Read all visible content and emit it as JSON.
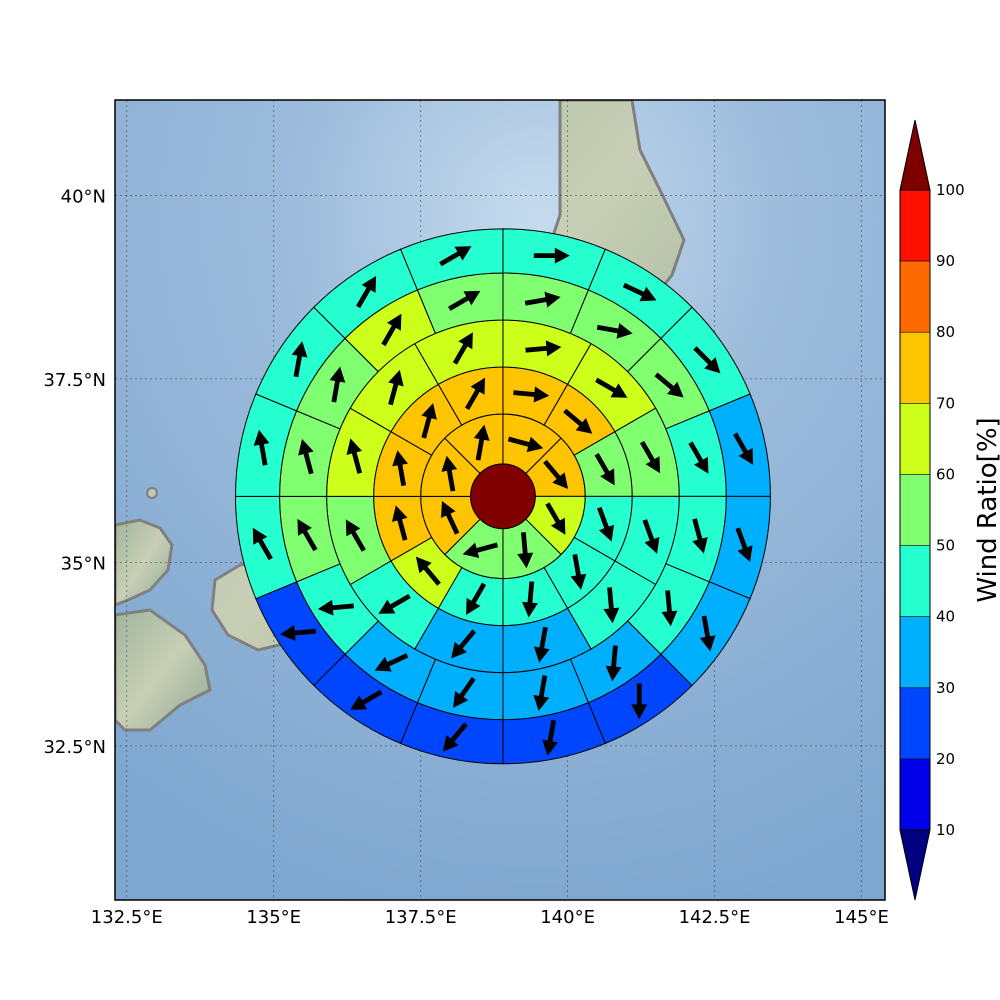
{
  "chart_data": {
    "type": "polar-sector-heatmap-with-wind-vectors",
    "map": {
      "lon_range": [
        132.3,
        145.4
      ],
      "lat_range": [
        30.4,
        41.3
      ],
      "x_tick_labels": [
        {
          "lon": 132.5,
          "label": "132.5°E"
        },
        {
          "lon": 135.0,
          "label": "135°E"
        },
        {
          "lon": 137.5,
          "label": "137.5°E"
        },
        {
          "lon": 140.0,
          "label": "140°E"
        },
        {
          "lon": 142.5,
          "label": "142.5°E"
        },
        {
          "lon": 145.0,
          "label": "145°E"
        }
      ],
      "y_tick_labels": [
        {
          "lat": 32.5,
          "label": "32.5°N"
        },
        {
          "lat": 35.0,
          "label": "35°N"
        },
        {
          "lat": 37.5,
          "label": "37.5°N"
        },
        {
          "lat": 40.0,
          "label": "40°N"
        }
      ],
      "grid": true,
      "background": "shaded-relief ocean and land (Japan, Korea)",
      "center": {
        "lon": 138.9,
        "lat": 35.9
      },
      "ring_radii_deg": [
        0.55,
        1.4,
        2.2,
        3.0,
        3.8,
        4.55
      ],
      "center_color": "#800000"
    },
    "colorbar": {
      "label": "Wind Ratio[%]",
      "ticks": [
        10,
        20,
        30,
        40,
        50,
        60,
        70,
        80,
        90,
        100
      ],
      "levels": [
        {
          "from": 10,
          "to": 20,
          "color": "#0000e8"
        },
        {
          "from": 20,
          "to": 30,
          "color": "#0046ff"
        },
        {
          "from": 30,
          "to": 40,
          "color": "#00b0ff"
        },
        {
          "from": 40,
          "to": 50,
          "color": "#26ffd0"
        },
        {
          "from": 50,
          "to": 60,
          "color": "#80ff70"
        },
        {
          "from": 60,
          "to": 70,
          "color": "#ccff1a"
        },
        {
          "from": 70,
          "to": 80,
          "color": "#ffc400"
        },
        {
          "from": 80,
          "to": 90,
          "color": "#ff6a00"
        },
        {
          "from": 90,
          "to": 100,
          "color": "#ff0f00"
        }
      ],
      "extend_min_color": "#000080",
      "extend_max_color": "#800000"
    },
    "rings": [
      {
        "ring": 1,
        "inner": 0.55,
        "outer": 1.4,
        "sector_deg": 45,
        "sectors": [
          {
            "start": 0,
            "end": 45,
            "ratio": 72,
            "wind_to_deg": 105
          },
          {
            "start": 45,
            "end": 90,
            "ratio": 72,
            "wind_to_deg": 140
          },
          {
            "start": 90,
            "end": 135,
            "ratio": 68,
            "wind_to_deg": 150
          },
          {
            "start": 135,
            "end": 180,
            "ratio": 58,
            "wind_to_deg": 175
          },
          {
            "start": 180,
            "end": 225,
            "ratio": 58,
            "wind_to_deg": 255
          },
          {
            "start": 225,
            "end": 270,
            "ratio": 72,
            "wind_to_deg": 335
          },
          {
            "start": 270,
            "end": 315,
            "ratio": 72,
            "wind_to_deg": 350
          },
          {
            "start": 315,
            "end": 360,
            "ratio": 72,
            "wind_to_deg": 10
          }
        ]
      },
      {
        "ring": 2,
        "inner": 1.4,
        "outer": 2.2,
        "sector_deg": 30,
        "sectors": [
          {
            "start": 0,
            "end": 30,
            "ratio": 72,
            "wind_to_deg": 95
          },
          {
            "start": 30,
            "end": 60,
            "ratio": 72,
            "wind_to_deg": 130
          },
          {
            "start": 60,
            "end": 90,
            "ratio": 58,
            "wind_to_deg": 150
          },
          {
            "start": 90,
            "end": 120,
            "ratio": 48,
            "wind_to_deg": 160
          },
          {
            "start": 120,
            "end": 150,
            "ratio": 45,
            "wind_to_deg": 170
          },
          {
            "start": 150,
            "end": 180,
            "ratio": 45,
            "wind_to_deg": 185
          },
          {
            "start": 180,
            "end": 210,
            "ratio": 45,
            "wind_to_deg": 210
          },
          {
            "start": 210,
            "end": 240,
            "ratio": 65,
            "wind_to_deg": 320
          },
          {
            "start": 240,
            "end": 270,
            "ratio": 72,
            "wind_to_deg": 345
          },
          {
            "start": 270,
            "end": 300,
            "ratio": 72,
            "wind_to_deg": 350
          },
          {
            "start": 300,
            "end": 330,
            "ratio": 72,
            "wind_to_deg": 15
          },
          {
            "start": 330,
            "end": 360,
            "ratio": 72,
            "wind_to_deg": 30
          }
        ]
      },
      {
        "ring": 3,
        "inner": 2.2,
        "outer": 3.0,
        "sector_deg": 30,
        "sectors": [
          {
            "start": 0,
            "end": 30,
            "ratio": 65,
            "wind_to_deg": 85
          },
          {
            "start": 30,
            "end": 60,
            "ratio": 65,
            "wind_to_deg": 120
          },
          {
            "start": 60,
            "end": 90,
            "ratio": 55,
            "wind_to_deg": 150
          },
          {
            "start": 90,
            "end": 120,
            "ratio": 48,
            "wind_to_deg": 160
          },
          {
            "start": 120,
            "end": 150,
            "ratio": 45,
            "wind_to_deg": 175
          },
          {
            "start": 150,
            "end": 180,
            "ratio": 38,
            "wind_to_deg": 190
          },
          {
            "start": 180,
            "end": 210,
            "ratio": 38,
            "wind_to_deg": 220
          },
          {
            "start": 210,
            "end": 240,
            "ratio": 45,
            "wind_to_deg": 240
          },
          {
            "start": 240,
            "end": 270,
            "ratio": 55,
            "wind_to_deg": 330
          },
          {
            "start": 270,
            "end": 300,
            "ratio": 65,
            "wind_to_deg": 345
          },
          {
            "start": 300,
            "end": 330,
            "ratio": 65,
            "wind_to_deg": 15
          },
          {
            "start": 330,
            "end": 360,
            "ratio": 65,
            "wind_to_deg": 30
          }
        ]
      },
      {
        "ring": 4,
        "inner": 3.0,
        "outer": 3.8,
        "sector_deg": 22.5,
        "sectors": [
          {
            "start": 0,
            "end": 22.5,
            "ratio": 55,
            "wind_to_deg": 80
          },
          {
            "start": 22.5,
            "end": 45,
            "ratio": 55,
            "wind_to_deg": 100
          },
          {
            "start": 45,
            "end": 67.5,
            "ratio": 55,
            "wind_to_deg": 130
          },
          {
            "start": 67.5,
            "end": 90,
            "ratio": 48,
            "wind_to_deg": 150
          },
          {
            "start": 90,
            "end": 112.5,
            "ratio": 45,
            "wind_to_deg": 165
          },
          {
            "start": 112.5,
            "end": 135,
            "ratio": 45,
            "wind_to_deg": 175
          },
          {
            "start": 135,
            "end": 157.5,
            "ratio": 38,
            "wind_to_deg": 185
          },
          {
            "start": 157.5,
            "end": 180,
            "ratio": 38,
            "wind_to_deg": 190
          },
          {
            "start": 180,
            "end": 202.5,
            "ratio": 38,
            "wind_to_deg": 215
          },
          {
            "start": 202.5,
            "end": 225,
            "ratio": 38,
            "wind_to_deg": 245
          },
          {
            "start": 225,
            "end": 247.5,
            "ratio": 45,
            "wind_to_deg": 265
          },
          {
            "start": 247.5,
            "end": 270,
            "ratio": 55,
            "wind_to_deg": 330
          },
          {
            "start": 270,
            "end": 292.5,
            "ratio": 55,
            "wind_to_deg": 345
          },
          {
            "start": 292.5,
            "end": 315,
            "ratio": 55,
            "wind_to_deg": 10
          },
          {
            "start": 315,
            "end": 337.5,
            "ratio": 65,
            "wind_to_deg": 30
          },
          {
            "start": 337.5,
            "end": 360,
            "ratio": 55,
            "wind_to_deg": 60
          }
        ]
      },
      {
        "ring": 5,
        "inner": 3.8,
        "outer": 4.55,
        "sector_deg": 22.5,
        "sectors": [
          {
            "start": 0,
            "end": 22.5,
            "ratio": 45,
            "wind_to_deg": 90
          },
          {
            "start": 22.5,
            "end": 45,
            "ratio": 45,
            "wind_to_deg": 115
          },
          {
            "start": 45,
            "end": 67.5,
            "ratio": 45,
            "wind_to_deg": 135
          },
          {
            "start": 67.5,
            "end": 90,
            "ratio": 38,
            "wind_to_deg": 150
          },
          {
            "start": 90,
            "end": 112.5,
            "ratio": 38,
            "wind_to_deg": 160
          },
          {
            "start": 112.5,
            "end": 135,
            "ratio": 38,
            "wind_to_deg": 170
          },
          {
            "start": 135,
            "end": 157.5,
            "ratio": 28,
            "wind_to_deg": 180
          },
          {
            "start": 157.5,
            "end": 180,
            "ratio": 28,
            "wind_to_deg": 190
          },
          {
            "start": 180,
            "end": 202.5,
            "ratio": 28,
            "wind_to_deg": 220
          },
          {
            "start": 202.5,
            "end": 225,
            "ratio": 28,
            "wind_to_deg": 240
          },
          {
            "start": 225,
            "end": 247.5,
            "ratio": 28,
            "wind_to_deg": 265
          },
          {
            "start": 247.5,
            "end": 270,
            "ratio": 45,
            "wind_to_deg": 330
          },
          {
            "start": 270,
            "end": 292.5,
            "ratio": 45,
            "wind_to_deg": 350
          },
          {
            "start": 292.5,
            "end": 315,
            "ratio": 45,
            "wind_to_deg": 10
          },
          {
            "start": 315,
            "end": 337.5,
            "ratio": 45,
            "wind_to_deg": 30
          },
          {
            "start": 337.5,
            "end": 360,
            "ratio": 45,
            "wind_to_deg": 60
          }
        ]
      }
    ]
  }
}
